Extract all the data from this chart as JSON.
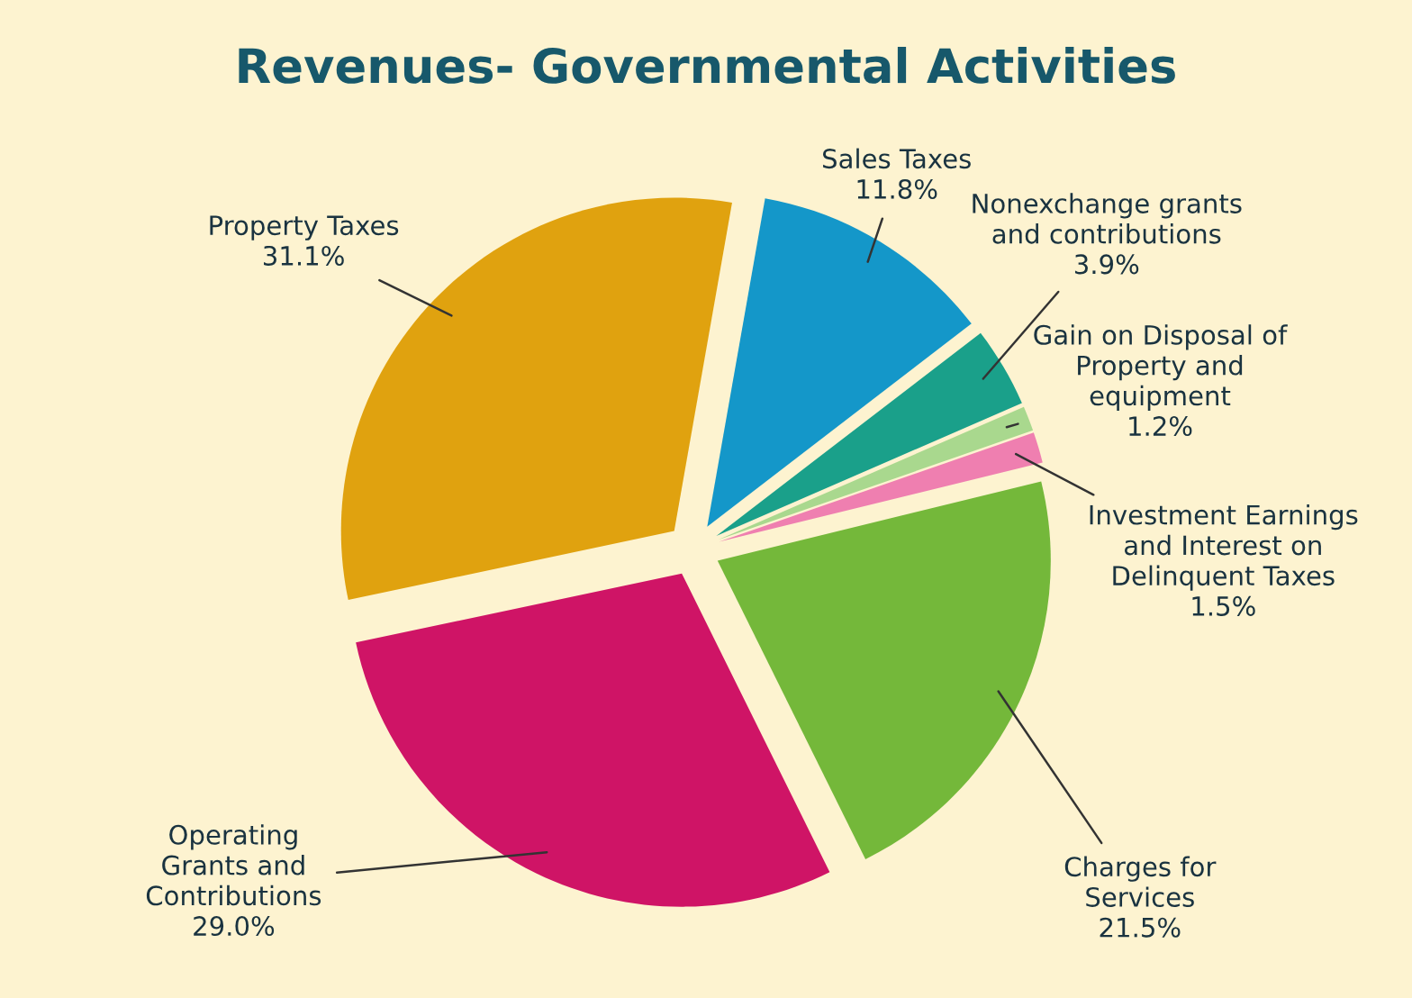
{
  "chart_data": {
    "type": "pie",
    "title": "Revenues- Governmental Activities",
    "categories": [
      "Sales Taxes",
      "Nonexchange grants\nand contributions",
      "Gain on Disposal of\nProperty and\nequipment",
      "Investment Earnings\nand Interest on\nDelinquent Taxes",
      "Charges for\nServices",
      "Operating\nGrants and\nContributions",
      "Property Taxes"
    ],
    "values": [
      11.8,
      3.9,
      1.2,
      1.5,
      21.5,
      29.0,
      31.1
    ],
    "value_labels": [
      "11.8%",
      "3.9%",
      "1.2%",
      "1.5%",
      "21.5%",
      "29.0%",
      "31.1%"
    ],
    "colors": [
      "#1497c9",
      "#1aa08a",
      "#a9d88e",
      "#ef7fb0",
      "#74b83a",
      "#cf1466",
      "#e0a20f"
    ]
  }
}
